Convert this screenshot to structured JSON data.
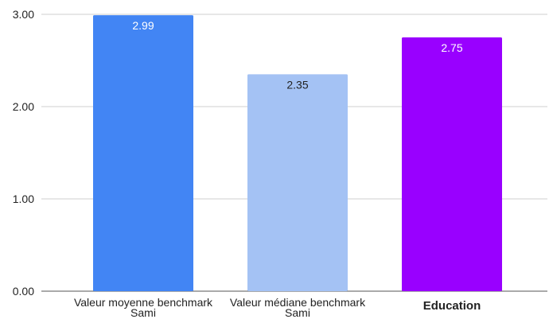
{
  "chart_data": {
    "type": "bar",
    "categories": [
      [
        "Valeur moyenne benchmark",
        "Sami"
      ],
      [
        "Valeur médiane benchmark",
        "Sami"
      ],
      [
        "Education"
      ]
    ],
    "category_bold": [
      false,
      false,
      true
    ],
    "values": [
      2.99,
      2.35,
      2.75
    ],
    "value_labels": [
      "2.99",
      "2.35",
      "2.75"
    ],
    "bar_colors": [
      "#4285f4",
      "#a4c2f4",
      "#9900ff"
    ],
    "label_colors": [
      "#ffffff",
      "#222222",
      "#ffffff"
    ],
    "ylim": [
      0,
      3
    ],
    "yticks": [
      0,
      1,
      2,
      3
    ],
    "ytick_labels": [
      "0.00",
      "1.00",
      "2.00",
      "3.00"
    ],
    "title": "",
    "xlabel": "",
    "ylabel": "",
    "grid": true,
    "legend": "none"
  }
}
